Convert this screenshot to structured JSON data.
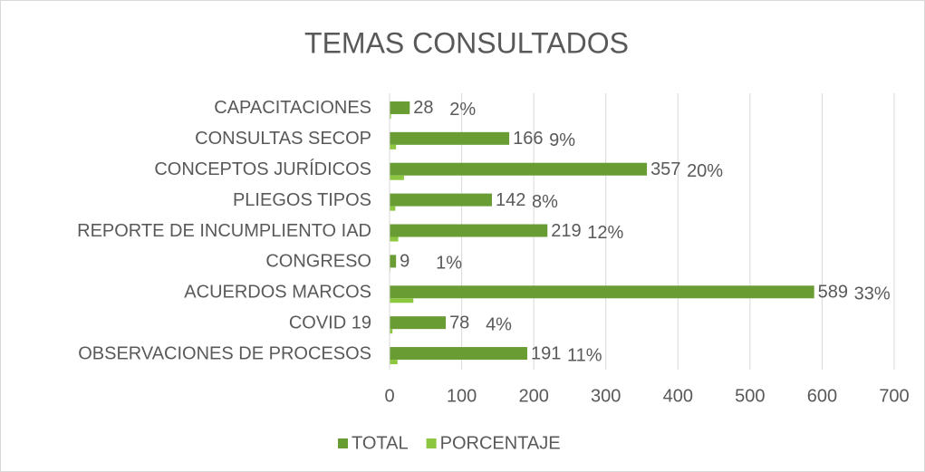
{
  "chart_data": {
    "type": "bar",
    "orientation": "horizontal",
    "title": "TEMAS CONSULTADOS",
    "categories": [
      "CAPACITACIONES",
      "CONSULTAS SECOP",
      "CONCEPTOS JURÍDICOS",
      "PLIEGOS TIPOS",
      "REPORTE DE INCUMPLIENTO IAD",
      "CONGRESO",
      "ACUERDOS MARCOS",
      "COVID 19",
      "OBSERVACIONES DE PROCESOS"
    ],
    "series": [
      {
        "name": "TOTAL",
        "color": "#6a9c34",
        "values": [
          28,
          166,
          357,
          142,
          219,
          9,
          589,
          78,
          191
        ]
      },
      {
        "name": "PORCENTAJE",
        "color": "#8dc63f",
        "values": [
          2,
          9,
          20,
          8,
          12,
          1,
          33,
          4,
          11
        ],
        "value_labels": [
          "2%",
          "9%",
          "20%",
          "8%",
          "12%",
          "1%",
          "33%",
          "4%",
          "11%"
        ]
      }
    ],
    "xlim": [
      0,
      700
    ],
    "xticks": [
      0,
      100,
      200,
      300,
      400,
      500,
      600,
      700
    ],
    "grid": true,
    "legend": "bottom"
  }
}
